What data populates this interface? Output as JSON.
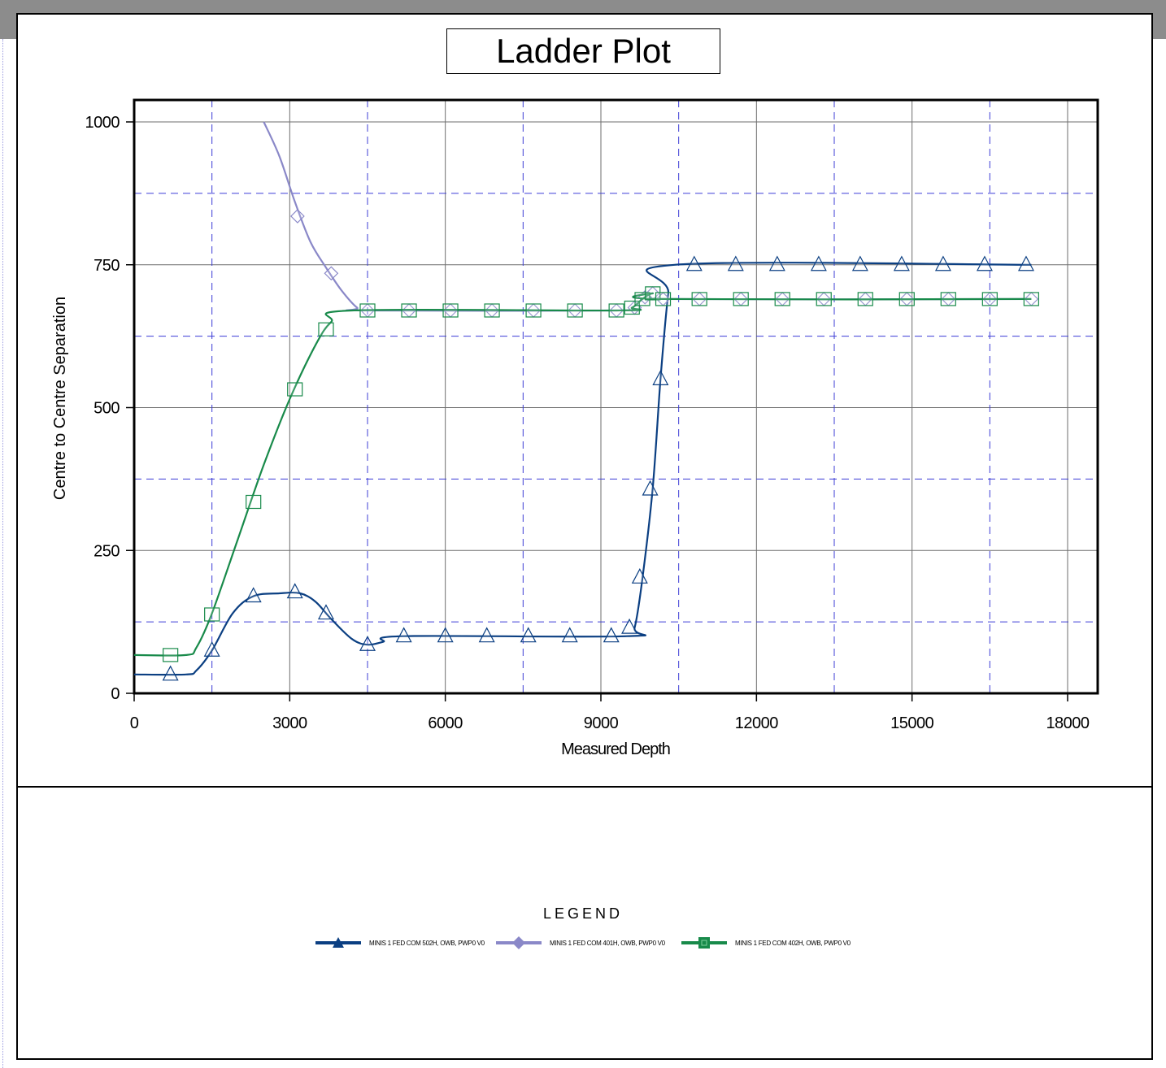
{
  "title": "Ladder Plot",
  "legend": {
    "title": "LEGEND",
    "items": [
      {
        "label": "MINIS 1 FED COM 502H, OWB, PWP0 V0",
        "color": "#0b3f82",
        "marker": "triangle"
      },
      {
        "label": "MINIS 1 FED COM 401H, OWB, PWP0 V0",
        "color": "#8a88c8",
        "marker": "diamond"
      },
      {
        "label": "MINIS 1 FED COM 402H, OWB, PWP0 V0",
        "color": "#188a4a",
        "marker": "square"
      }
    ]
  },
  "chart_data": {
    "type": "line",
    "title": "Ladder Plot",
    "xlabel": "Measured Depth",
    "ylabel": "Centre to Centre Separation",
    "xlim": [
      0,
      18500
    ],
    "ylim": [
      0,
      1000
    ],
    "xticks": [
      0,
      3000,
      6000,
      9000,
      12000,
      15000,
      18000
    ],
    "yticks": [
      0,
      250,
      500,
      750,
      1000
    ],
    "grid": true,
    "series": [
      {
        "name": "MINIS 1 FED COM 502H, OWB, PWP0 V0",
        "color": "#0b3f82",
        "marker": "triangle",
        "line": [
          [
            0,
            33
          ],
          [
            1000,
            33
          ],
          [
            1200,
            40
          ],
          [
            1500,
            75
          ],
          [
            1900,
            140
          ],
          [
            2300,
            170
          ],
          [
            2800,
            175
          ],
          [
            3200,
            175
          ],
          [
            3500,
            160
          ],
          [
            3800,
            130
          ],
          [
            4200,
            95
          ],
          [
            4500,
            85
          ],
          [
            4800,
            90
          ],
          [
            5200,
            100
          ],
          [
            9500,
            100
          ],
          [
            9650,
            115
          ],
          [
            9800,
            200
          ],
          [
            10000,
            360
          ],
          [
            10150,
            550
          ],
          [
            10300,
            700
          ],
          [
            10420,
            750
          ],
          [
            17300,
            750
          ]
        ],
        "markers": [
          [
            700,
            33
          ],
          [
            1500,
            75
          ],
          [
            2300,
            170
          ],
          [
            3100,
            177
          ],
          [
            3700,
            140
          ],
          [
            4500,
            85
          ],
          [
            5200,
            100
          ],
          [
            6000,
            100
          ],
          [
            6800,
            100
          ],
          [
            7600,
            100
          ],
          [
            8400,
            100
          ],
          [
            9200,
            100
          ],
          [
            9550,
            115
          ],
          [
            9750,
            203
          ],
          [
            9950,
            357
          ],
          [
            10150,
            550
          ],
          [
            10800,
            750
          ],
          [
            11600,
            750
          ],
          [
            12400,
            750
          ],
          [
            13200,
            750
          ],
          [
            14000,
            750
          ],
          [
            14800,
            750
          ],
          [
            15600,
            750
          ],
          [
            16400,
            750
          ],
          [
            17200,
            750
          ]
        ]
      },
      {
        "name": "MINIS 1 FED COM 401H, OWB, PWP0 V0",
        "color": "#8a88c8",
        "marker": "diamond",
        "line": [
          [
            2500,
            1000
          ],
          [
            2800,
            940
          ],
          [
            3100,
            860
          ],
          [
            3400,
            790
          ],
          [
            3700,
            745
          ],
          [
            4000,
            705
          ],
          [
            4300,
            675
          ],
          [
            4500,
            670
          ],
          [
            9300,
            670
          ],
          [
            9600,
            675
          ],
          [
            9800,
            690
          ],
          [
            10000,
            700
          ],
          [
            10200,
            690
          ],
          [
            17300,
            690
          ]
        ],
        "markers": [
          [
            3150,
            835
          ],
          [
            3800,
            735
          ],
          [
            4500,
            670
          ],
          [
            5300,
            670
          ],
          [
            6100,
            670
          ],
          [
            6900,
            670
          ],
          [
            7700,
            670
          ],
          [
            8500,
            670
          ],
          [
            9300,
            670
          ],
          [
            9650,
            675
          ],
          [
            9850,
            693
          ],
          [
            10000,
            700
          ],
          [
            10200,
            690
          ],
          [
            10900,
            690
          ],
          [
            11700,
            690
          ],
          [
            12500,
            690
          ],
          [
            13300,
            690
          ],
          [
            14100,
            690
          ],
          [
            14900,
            690
          ],
          [
            15700,
            690
          ],
          [
            16500,
            690
          ],
          [
            17300,
            690
          ]
        ]
      },
      {
        "name": "MINIS 1 FED COM 402H, OWB, PWP0 V0",
        "color": "#188a4a",
        "marker": "square",
        "line": [
          [
            0,
            67
          ],
          [
            1000,
            67
          ],
          [
            1200,
            80
          ],
          [
            1500,
            140
          ],
          [
            2000,
            270
          ],
          [
            2500,
            400
          ],
          [
            3000,
            515
          ],
          [
            3500,
            610
          ],
          [
            3800,
            650
          ],
          [
            4200,
            670
          ],
          [
            9300,
            670
          ],
          [
            9600,
            675
          ],
          [
            9800,
            690
          ],
          [
            10000,
            700
          ],
          [
            10200,
            690
          ],
          [
            17300,
            690
          ]
        ],
        "markers": [
          [
            700,
            67
          ],
          [
            1500,
            138
          ],
          [
            2300,
            335
          ],
          [
            3100,
            532
          ],
          [
            3700,
            637
          ],
          [
            4500,
            670
          ],
          [
            5300,
            670
          ],
          [
            6100,
            670
          ],
          [
            6900,
            670
          ],
          [
            7700,
            670
          ],
          [
            8500,
            670
          ],
          [
            9300,
            670
          ],
          [
            9600,
            675
          ],
          [
            9800,
            690
          ],
          [
            10000,
            700
          ],
          [
            10200,
            690
          ],
          [
            10900,
            690
          ],
          [
            11700,
            690
          ],
          [
            12500,
            690
          ],
          [
            13300,
            690
          ],
          [
            14100,
            690
          ],
          [
            14900,
            690
          ],
          [
            15700,
            690
          ],
          [
            16500,
            690
          ],
          [
            17300,
            690
          ]
        ]
      }
    ]
  }
}
